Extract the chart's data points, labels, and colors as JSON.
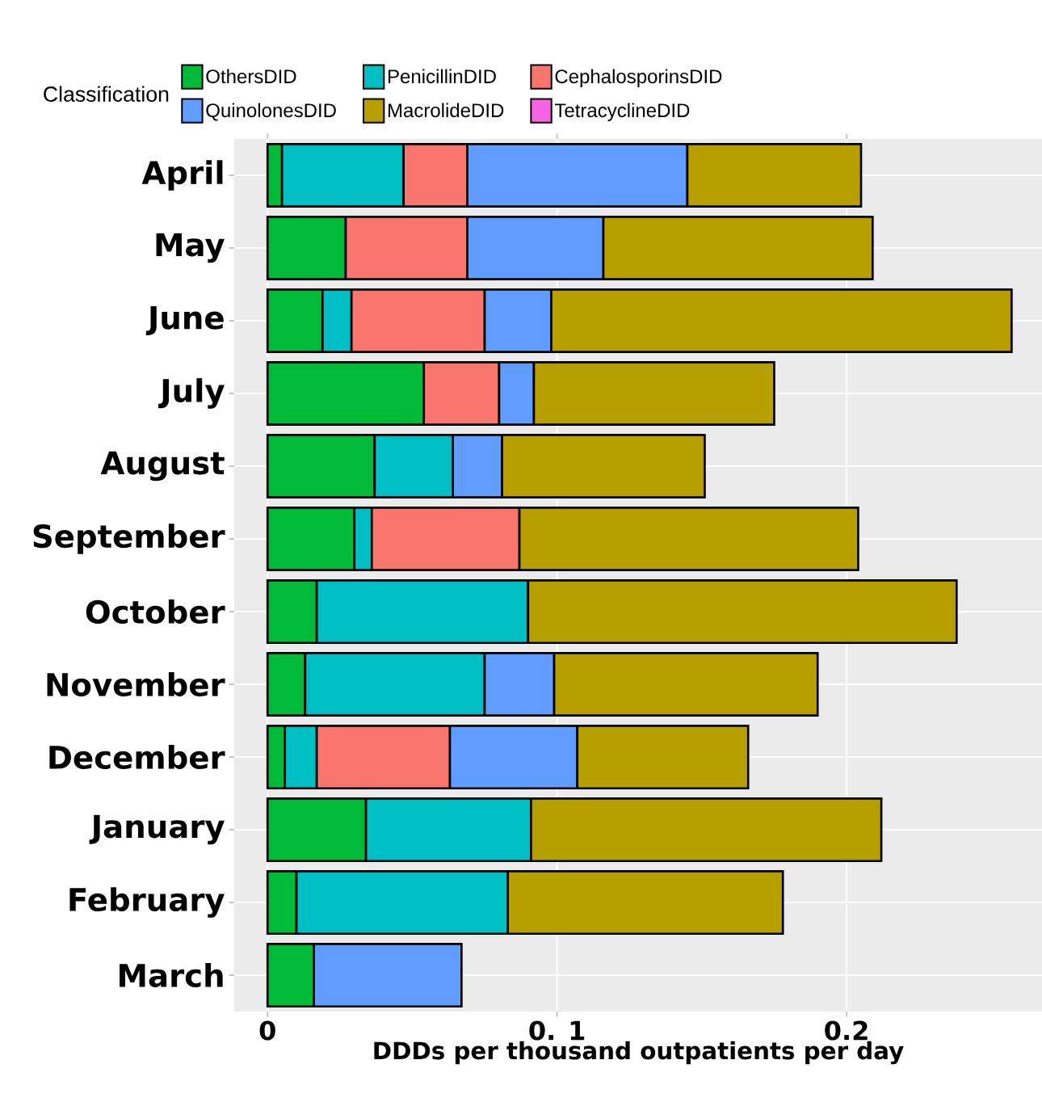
{
  "chart_data": {
    "type": "bar",
    "orientation": "horizontal",
    "stacked": true,
    "xlabel": "DDDs per thousand outpatients per day",
    "legend_title": "Classification",
    "legend": "top",
    "grid": true,
    "categories": [
      "April",
      "May",
      "June",
      "July",
      "August",
      "September",
      "October",
      "November",
      "December",
      "January",
      "February",
      "March"
    ],
    "xlim": [
      -0.0115,
      0.2675
    ],
    "xticks": [
      0,
      {
        "value": 0.1,
        "label": "0. 1"
      },
      0.2
    ],
    "series": [
      {
        "name": "OthersDID",
        "color": "#00ba38",
        "values": [
          0.005,
          0.027,
          0.019,
          0.054,
          0.037,
          0.03,
          0.017,
          0.013,
          0.006,
          0.034,
          0.01,
          0.016
        ]
      },
      {
        "name": "PenicillinDID",
        "color": "#00bfc4",
        "values": [
          0.042,
          null,
          0.01,
          null,
          0.027,
          0.006,
          0.073,
          0.062,
          0.011,
          0.057,
          0.073,
          null
        ]
      },
      {
        "name": "CephalosporinsDID",
        "color": "#f8766d",
        "values": [
          0.022,
          0.042,
          0.046,
          0.026,
          null,
          0.051,
          null,
          null,
          0.046,
          null,
          null,
          null
        ]
      },
      {
        "name": "QuinolonesDID",
        "color": "#619cff",
        "values": [
          0.076,
          0.047,
          0.023,
          0.012,
          0.017,
          null,
          null,
          0.024,
          0.044,
          null,
          null,
          0.051
        ]
      },
      {
        "name": "MacrolideDID",
        "color": "#b79f00",
        "values": [
          0.06,
          0.093,
          0.159,
          0.083,
          0.07,
          0.117,
          0.148,
          0.091,
          0.059,
          0.121,
          0.095,
          null
        ]
      },
      {
        "name": "TetracyclineDID",
        "color": "#f564e3",
        "values": [
          null,
          null,
          null,
          null,
          null,
          null,
          null,
          null,
          null,
          null,
          null,
          null
        ]
      }
    ]
  }
}
